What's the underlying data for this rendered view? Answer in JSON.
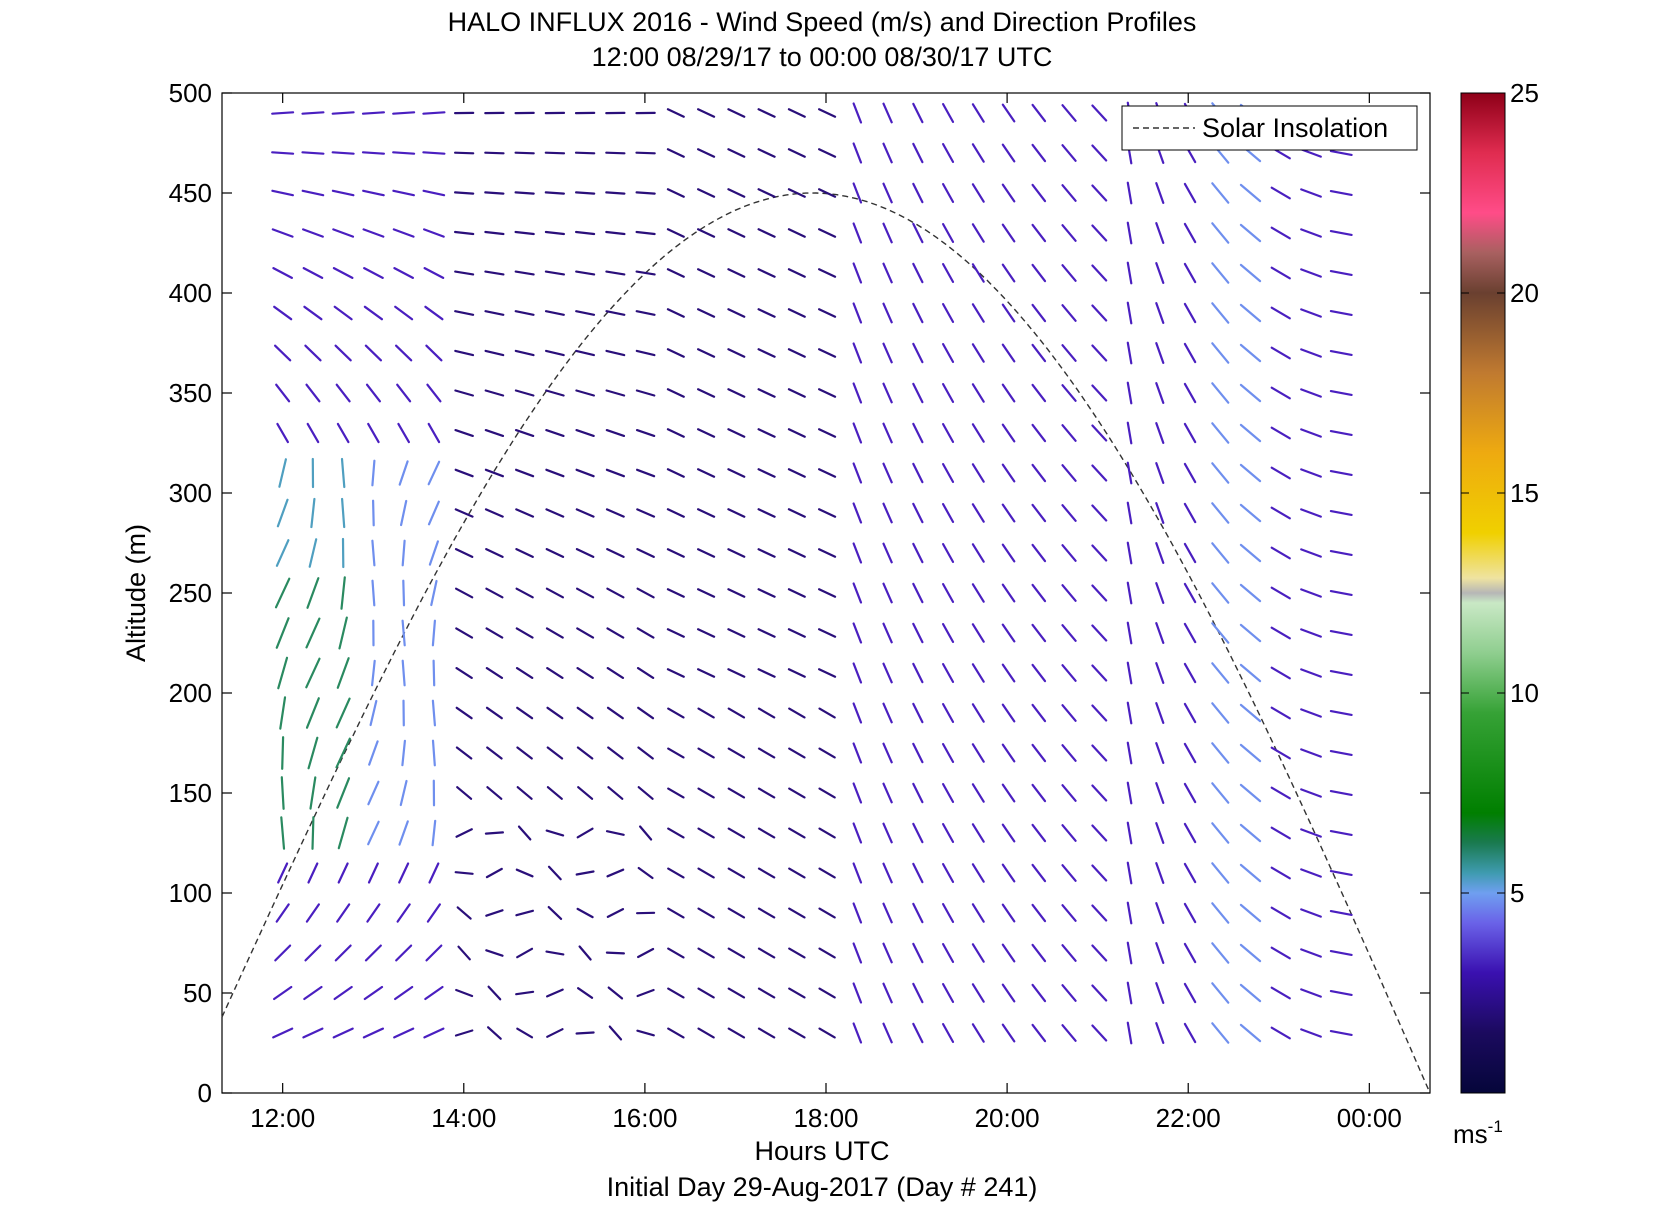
{
  "chart_data": {
    "type": "wind-barb-profile",
    "title": "HALO INFLUX 2016 - Wind Speed (m/s) and Direction Profiles",
    "subtitle": "12:00 08/29/17 to 00:00 08/30/17  UTC",
    "xlabel": "Hours UTC",
    "xlabel2": "Initial Day 29-Aug-2017 (Day # 241)",
    "ylabel": "Altitude (m)",
    "xlim_hours": [
      11.33,
      24.67
    ],
    "ylim": [
      0,
      500
    ],
    "x_ticks": [
      {
        "value": 12,
        "label": "12:00"
      },
      {
        "value": 14,
        "label": "14:00"
      },
      {
        "value": 16,
        "label": "16:00"
      },
      {
        "value": 18,
        "label": "18:00"
      },
      {
        "value": 20,
        "label": "20:00"
      },
      {
        "value": 22,
        "label": "22:00"
      },
      {
        "value": 24,
        "label": "00:00"
      }
    ],
    "y_ticks": [
      0,
      50,
      100,
      150,
      200,
      250,
      300,
      350,
      400,
      450,
      500
    ],
    "legend": {
      "entries": [
        "Solar Insolation"
      ],
      "placement": "top-right"
    },
    "solar_insolation": {
      "peak_hour": 17.85,
      "peak_altitude": 450,
      "start_hour": 11.33,
      "start_altitude": 38,
      "end_hour": 24.67,
      "end_altitude": 0
    },
    "colorbar": {
      "min": 0,
      "max": 25,
      "ticks": [
        5,
        10,
        15,
        20,
        25
      ],
      "unit_label": "ms",
      "unit_exponent": "-1"
    },
    "grid": false
  }
}
